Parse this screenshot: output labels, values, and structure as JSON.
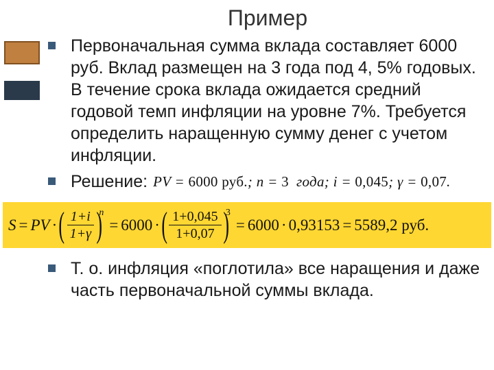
{
  "title": "Пример",
  "bullets": {
    "b1": "Первоначальная сумма вклада составляет 6000 руб. Вклад размещен на 3 года под 4, 5% годовых. В течение срока вклада ожидается средний годовой темп инфляции на уровне 7%. Требуется определить наращенную сумму денег с учетом инфляции.",
    "b2": "Решение:",
    "b3": "Т. о. инфляция «поглотила» все наращения и даже часть первоначальной суммы вклада."
  },
  "given": {
    "pv_label": "PV",
    "pv_val": "6000 руб.",
    "n_label": "n",
    "n_val": "3",
    "n_unit": "года",
    "i_label": "i",
    "i_val": "0,045",
    "g_label": "γ",
    "g_val": "0,07"
  },
  "formula": {
    "S": "S",
    "PV": "PV",
    "num1": "1+i",
    "den1": "1+γ",
    "exp1": "n",
    "pv_num": "6000",
    "num2": "1+0,045",
    "den2": "1+0,07",
    "exp2": "3",
    "factor": "0,93153",
    "result": "5589,2 руб."
  },
  "colors": {
    "bullet": "#3a5a7a",
    "formula_bg": "#ffd732",
    "text": "#1a1a1a",
    "bg": "#ffffff"
  }
}
